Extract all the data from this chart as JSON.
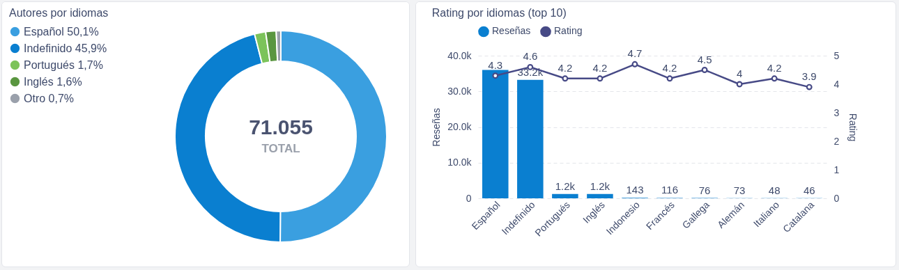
{
  "chart_data": [
    {
      "type": "donut",
      "title": "Autores por idiomas",
      "categories": [
        "Español",
        "Indefinido",
        "Portugués",
        "Inglés",
        "Otro"
      ],
      "values": [
        50.1,
        45.9,
        1.7,
        1.6,
        0.7
      ],
      "colors": [
        "#3a9fe0",
        "#0a7fd0",
        "#7cc35a",
        "#5a9640",
        "#9aa0ab"
      ],
      "value_labels": [
        "50,1%",
        "45,9%",
        "1,7%",
        "1,6%",
        "0,7%"
      ],
      "legend": "left",
      "annotations": [
        "71.055",
        "TOTAL"
      ]
    },
    {
      "type": "bar",
      "title": "Rating por idiomas (top 10)",
      "categories": [
        "Español",
        "Indefinido",
        "Portugués",
        "Inglés",
        "Indonesio",
        "Francés",
        "Gallega",
        "Alemán",
        "Italiano",
        "Catalana"
      ],
      "ylabel": "Reseñas",
      "y2label": "Rating",
      "ylim": [
        0,
        40000
      ],
      "yticks": [
        0,
        {
          "value": 10000,
          "label": "10.0k"
        },
        {
          "value": 20000,
          "label": "20.0k"
        },
        {
          "value": 30000,
          "label": "30.0k"
        },
        {
          "value": 40000,
          "label": "40.0k"
        }
      ],
      "y2lim": [
        0,
        5
      ],
      "y2ticks": [
        0,
        1,
        2,
        3,
        4,
        5
      ],
      "grid": "y",
      "legend": "top left",
      "marker": "circle",
      "series": [
        {
          "name": "Reseñas",
          "color": "#0a7fd0",
          "values": [
            36000,
            33200,
            1200,
            1200,
            143,
            116,
            76,
            73,
            48,
            46
          ],
          "value_labels": [
            null,
            "33.2k",
            "1.2k",
            "1.2k",
            "143",
            "116",
            "76",
            "73",
            "48",
            "46"
          ]
        },
        {
          "name": "Rating",
          "type": "line",
          "axis": "y2",
          "color": "#474a86",
          "values": [
            4.3,
            4.6,
            4.2,
            4.2,
            4.7,
            4.2,
            4.5,
            4.0,
            4.2,
            3.9
          ],
          "value_labels": [
            "4.3",
            "4.6",
            "4.2",
            "4.2",
            "4.7",
            "4.2",
            "4.5",
            "4",
            "4.2",
            "3.9"
          ]
        }
      ]
    }
  ]
}
